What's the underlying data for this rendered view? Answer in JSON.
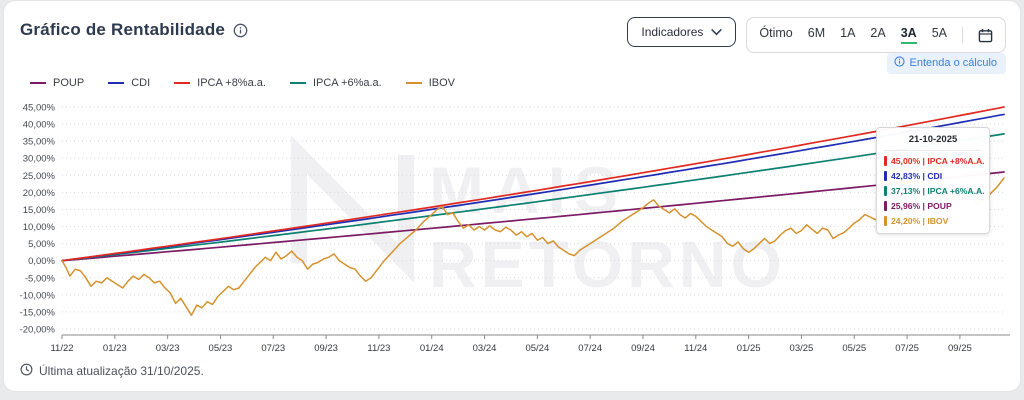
{
  "header": {
    "title": "Gráfico de Rentabilidade",
    "indicators_button": "Indicadores",
    "range_options": [
      "Ótimo",
      "6M",
      "1A",
      "2A",
      "3A",
      "5A"
    ],
    "active_range": "3A",
    "calc_link": "Entenda o cálculo"
  },
  "watermark": {
    "line1": "MAIS",
    "line2": "RETORNO"
  },
  "footer": {
    "last_update": "Última atualização 31/10/2025."
  },
  "colors": {
    "accent_green": "#2eb871",
    "link_blue": "#3c7fd9",
    "chip_bg": "#e9f2fc",
    "title_text": "#2e3a4e",
    "grid": "#d9d9dd",
    "axis": "#8a8a8a",
    "watermark": "#f0f0f2"
  },
  "tooltip": {
    "date": "21-10-2025",
    "rows": [
      {
        "value": "45,00%",
        "label": "IPCA +8%A.A.",
        "color": "#e02a21"
      },
      {
        "value": "42,83%",
        "label": "CDI",
        "color": "#1f2db4"
      },
      {
        "value": "37,13%",
        "label": "IPCA +6%A.A.",
        "color": "#0c8172"
      },
      {
        "value": "25,96%",
        "label": "POUP",
        "color": "#7b1b66"
      },
      {
        "value": "24,20%",
        "label": "IBOV",
        "color": "#d5922d"
      }
    ]
  },
  "chart_data": {
    "type": "line",
    "title": "Gráfico de Rentabilidade",
    "ylim": [
      -20,
      45
    ],
    "y_tick_labels": [
      "45,00%",
      "40,00%",
      "35,00%",
      "30,00%",
      "25,00%",
      "20,00%",
      "15,00%",
      "10,00%",
      "5,00%",
      "0,00%",
      "-5,00%",
      "-10,00%",
      "-15,00%",
      "-20,00%"
    ],
    "y_tick_values": [
      45,
      40,
      35,
      30,
      25,
      20,
      15,
      10,
      5,
      0,
      -5,
      -10,
      -15,
      -20
    ],
    "x_tick_labels": [
      "11/22",
      "01/23",
      "03/23",
      "05/23",
      "07/23",
      "09/23",
      "11/23",
      "01/24",
      "03/24",
      "05/24",
      "07/24",
      "09/24",
      "11/24",
      "01/25",
      "03/25",
      "05/25",
      "07/25",
      "09/25"
    ],
    "months_span": 35.67,
    "grid": true,
    "legend_position": "top-left",
    "legend": [
      {
        "name": "POUP",
        "color": "#7b1b66"
      },
      {
        "name": "CDI",
        "color": "#1f2db4"
      },
      {
        "name": "IPCA +8%a.a.",
        "color": "#e02a21"
      },
      {
        "name": "IPCA +6%a.a.",
        "color": "#0c8172"
      },
      {
        "name": "IBOV",
        "color": "#d5922d"
      }
    ],
    "series": [
      {
        "name": "POUP",
        "color": "#7b1b66",
        "shape": "compound",
        "final": 25.96
      },
      {
        "name": "IPCA +6%a.a.",
        "color": "#0c8172",
        "shape": "compound",
        "final": 37.13
      },
      {
        "name": "CDI",
        "color": "#1f2db4",
        "shape": "compound",
        "final": 42.83
      },
      {
        "name": "IPCA +8%a.a.",
        "color": "#e02a21",
        "shape": "compound",
        "final": 45.0
      },
      {
        "name": "IBOV",
        "color": "#d5922d",
        "shape": "points",
        "points": [
          [
            0,
            0
          ],
          [
            0.15,
            -2
          ],
          [
            0.3,
            -4.5
          ],
          [
            0.5,
            -2.5
          ],
          [
            0.7,
            -3
          ],
          [
            0.9,
            -5
          ],
          [
            1.1,
            -7.5
          ],
          [
            1.3,
            -6
          ],
          [
            1.5,
            -6.5
          ],
          [
            1.7,
            -5
          ],
          [
            1.9,
            -6
          ],
          [
            2.1,
            -7
          ],
          [
            2.3,
            -8
          ],
          [
            2.5,
            -6
          ],
          [
            2.7,
            -4.5
          ],
          [
            2.9,
            -5.5
          ],
          [
            3.1,
            -4
          ],
          [
            3.3,
            -5
          ],
          [
            3.5,
            -6.5
          ],
          [
            3.7,
            -6
          ],
          [
            3.9,
            -8
          ],
          [
            4.1,
            -9.5
          ],
          [
            4.3,
            -12.5
          ],
          [
            4.5,
            -11
          ],
          [
            4.7,
            -13.5
          ],
          [
            4.9,
            -16
          ],
          [
            5.1,
            -13
          ],
          [
            5.3,
            -13.8
          ],
          [
            5.5,
            -12
          ],
          [
            5.7,
            -12.8
          ],
          [
            5.9,
            -10.5
          ],
          [
            6.1,
            -9
          ],
          [
            6.3,
            -7.5
          ],
          [
            6.5,
            -8.5
          ],
          [
            6.7,
            -8
          ],
          [
            6.9,
            -6
          ],
          [
            7.1,
            -4
          ],
          [
            7.3,
            -2
          ],
          [
            7.5,
            -0.5
          ],
          [
            7.7,
            1
          ],
          [
            7.9,
            0
          ],
          [
            8.1,
            2.5
          ],
          [
            8.3,
            0.5
          ],
          [
            8.5,
            1.5
          ],
          [
            8.7,
            2.8
          ],
          [
            8.9,
            1
          ],
          [
            9.1,
            0
          ],
          [
            9.3,
            -2.5
          ],
          [
            9.5,
            -1
          ],
          [
            9.7,
            -0.5
          ],
          [
            9.9,
            0.5
          ],
          [
            10.1,
            1
          ],
          [
            10.3,
            2
          ],
          [
            10.5,
            0
          ],
          [
            10.7,
            -1
          ],
          [
            10.9,
            -2
          ],
          [
            11.1,
            -2.5
          ],
          [
            11.3,
            -4.5
          ],
          [
            11.5,
            -6
          ],
          [
            11.7,
            -5
          ],
          [
            11.9,
            -3
          ],
          [
            12.2,
            0
          ],
          [
            12.5,
            2.5
          ],
          [
            12.8,
            5
          ],
          [
            13.1,
            7
          ],
          [
            13.4,
            9
          ],
          [
            13.7,
            11.5
          ],
          [
            14,
            13.5
          ],
          [
            14.2,
            15
          ],
          [
            14.4,
            15.8
          ],
          [
            14.6,
            13.5
          ],
          [
            14.8,
            14
          ],
          [
            15,
            11.5
          ],
          [
            15.2,
            9.5
          ],
          [
            15.4,
            10.5
          ],
          [
            15.6,
            9
          ],
          [
            15.8,
            10
          ],
          [
            16,
            9
          ],
          [
            16.2,
            10.2
          ],
          [
            16.4,
            9
          ],
          [
            16.6,
            8.5
          ],
          [
            16.8,
            9.8
          ],
          [
            17,
            9
          ],
          [
            17.2,
            7.5
          ],
          [
            17.4,
            8.5
          ],
          [
            17.6,
            7
          ],
          [
            17.8,
            8
          ],
          [
            18,
            6
          ],
          [
            18.2,
            6.8
          ],
          [
            18.4,
            5
          ],
          [
            18.6,
            5.8
          ],
          [
            18.8,
            4
          ],
          [
            19,
            3
          ],
          [
            19.2,
            2
          ],
          [
            19.4,
            1.5
          ],
          [
            19.6,
            3
          ],
          [
            19.8,
            4
          ],
          [
            20,
            5
          ],
          [
            20.3,
            6.5
          ],
          [
            20.6,
            8
          ],
          [
            20.9,
            9.5
          ],
          [
            21.2,
            11.5
          ],
          [
            21.5,
            13
          ],
          [
            21.8,
            14.5
          ],
          [
            22,
            15.5
          ],
          [
            22.2,
            16.8
          ],
          [
            22.4,
            17.8
          ],
          [
            22.6,
            16
          ],
          [
            22.8,
            15
          ],
          [
            23,
            14
          ],
          [
            23.2,
            15.2
          ],
          [
            23.4,
            13.5
          ],
          [
            23.6,
            12.5
          ],
          [
            23.8,
            13.8
          ],
          [
            24,
            13
          ],
          [
            24.2,
            11.5
          ],
          [
            24.4,
            10
          ],
          [
            24.6,
            9
          ],
          [
            24.8,
            8
          ],
          [
            25,
            7
          ],
          [
            25.2,
            5
          ],
          [
            25.4,
            4.2
          ],
          [
            25.6,
            5.5
          ],
          [
            25.8,
            3.5
          ],
          [
            26,
            2.5
          ],
          [
            26.2,
            3.5
          ],
          [
            26.4,
            5
          ],
          [
            26.6,
            6.5
          ],
          [
            26.8,
            5
          ],
          [
            27,
            5.8
          ],
          [
            27.2,
            7.5
          ],
          [
            27.4,
            8.8
          ],
          [
            27.6,
            9.5
          ],
          [
            27.8,
            8
          ],
          [
            28,
            8.8
          ],
          [
            28.2,
            10.5
          ],
          [
            28.4,
            9.2
          ],
          [
            28.6,
            8
          ],
          [
            28.8,
            9.5
          ],
          [
            29,
            9
          ],
          [
            29.2,
            6.5
          ],
          [
            29.4,
            7.5
          ],
          [
            29.6,
            8.2
          ],
          [
            29.8,
            9.5
          ],
          [
            30,
            11
          ],
          [
            30.2,
            12
          ],
          [
            30.4,
            13.5
          ],
          [
            30.6,
            12.8
          ],
          [
            30.8,
            12
          ],
          [
            31,
            13.2
          ],
          [
            31.2,
            14.5
          ],
          [
            31.4,
            15.5
          ],
          [
            31.6,
            16.5
          ],
          [
            31.8,
            15.8
          ],
          [
            32,
            15.5
          ],
          [
            32.2,
            17
          ],
          [
            32.4,
            18.5
          ],
          [
            32.6,
            20.5
          ],
          [
            32.8,
            19.5
          ],
          [
            33,
            19
          ],
          [
            33.2,
            17.5
          ],
          [
            33.4,
            17
          ],
          [
            33.6,
            18.5
          ],
          [
            33.8,
            18
          ],
          [
            34,
            17.5
          ],
          [
            34.2,
            19
          ],
          [
            34.4,
            19.5
          ],
          [
            34.6,
            16.5
          ],
          [
            34.8,
            17.5
          ],
          [
            35,
            18
          ],
          [
            35.2,
            20
          ],
          [
            35.4,
            21.5
          ],
          [
            35.67,
            24.2
          ]
        ]
      }
    ]
  }
}
